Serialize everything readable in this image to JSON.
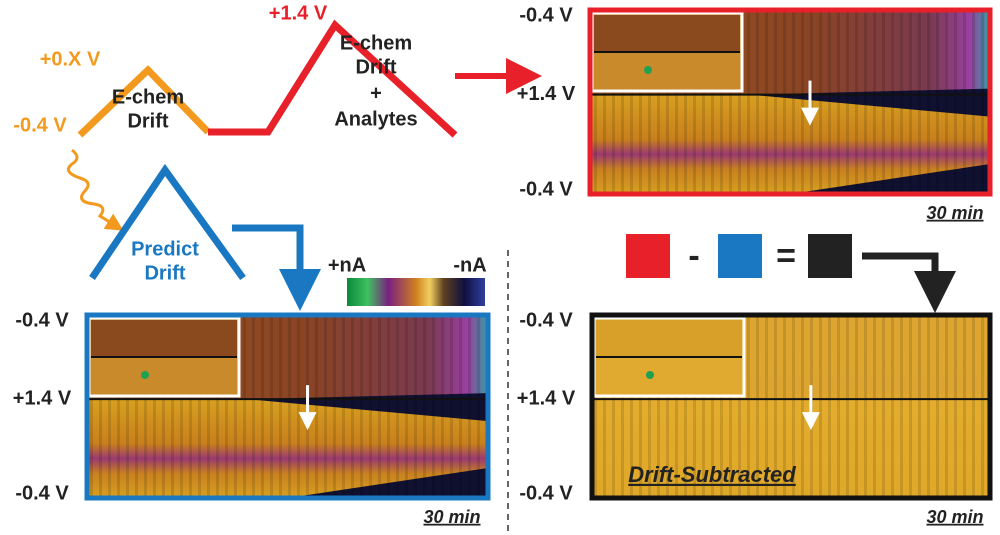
{
  "waveform": {
    "start_label": "-0.4 V",
    "peak1_label": "+0.X V",
    "peak2_label": "+1.4 V",
    "segment1_lines": [
      "E-chem",
      "Drift"
    ],
    "segment2_lines": [
      "E-chem",
      "Drift",
      "+",
      "Analytes"
    ],
    "predict_lines": [
      "Predict",
      "Drift"
    ]
  },
  "colorbar": {
    "positive": "+nA",
    "negative": "-nA"
  },
  "equation": {
    "minus": "-",
    "equals": "="
  },
  "panels": [
    {
      "y_labels": [
        "-0.4 V",
        "+1.4 V",
        "-0.4 V"
      ],
      "time_label": "30 min"
    },
    {
      "y_labels": [
        "-0.4 V",
        "+1.4 V",
        "-0.4 V"
      ],
      "time_label": "30 min"
    },
    {
      "y_labels": [
        "-0.4 V",
        "+1.4 V",
        "-0.4 V"
      ],
      "time_label": "30 min",
      "overlay_label": "Drift-Subtracted"
    }
  ]
}
